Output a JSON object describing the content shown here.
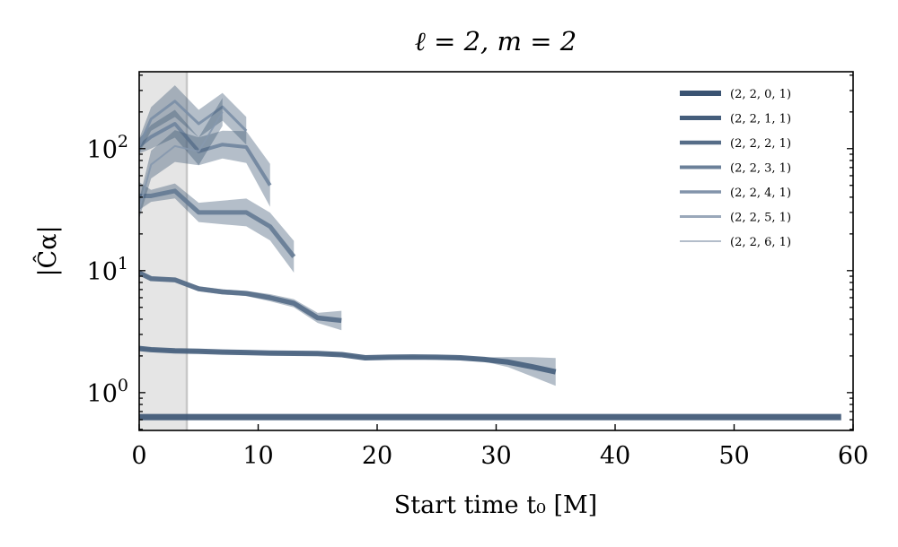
{
  "chart_data": {
    "type": "line",
    "title": "ℓ = 2, m = 2",
    "xlabel": "Start time t₀ [M]",
    "ylabel": "|Ĉα|",
    "xlim": [
      0,
      60
    ],
    "ylim": [
      0.49,
      427
    ],
    "yscale": "log",
    "xticks": [
      0,
      10,
      20,
      30,
      40,
      50,
      60
    ],
    "yticks": [
      {
        "value": 1,
        "base": "10",
        "exp": "0"
      },
      {
        "value": 10,
        "base": "10",
        "exp": "1"
      },
      {
        "value": 100,
        "base": "10",
        "exp": "2"
      }
    ],
    "shaded_region": {
      "x_from": 0,
      "x_to": 4,
      "color": "#e5e5e5"
    },
    "legend_position": "top-right",
    "series": [
      {
        "name": "(2, 2, 0, 1)",
        "color": "#3a5372",
        "x": [
          0,
          59
        ],
        "y": [
          0.63,
          0.63
        ],
        "err": [
          1.0,
          1.0
        ]
      },
      {
        "name": "(2, 2, 1, 1)",
        "color": "#455e7c",
        "x": [
          0,
          1,
          3,
          5,
          7,
          9,
          11,
          13,
          15,
          17,
          19,
          21,
          23,
          25,
          27,
          29,
          31,
          33,
          35
        ],
        "y": [
          2.3,
          2.25,
          2.2,
          2.18,
          2.15,
          2.13,
          2.11,
          2.1,
          2.09,
          2.05,
          1.93,
          1.95,
          1.96,
          1.95,
          1.93,
          1.87,
          1.78,
          1.63,
          1.48
        ],
        "err": [
          1.03,
          1.03,
          1.02,
          1.02,
          1.02,
          1.02,
          1.02,
          1.02,
          1.02,
          1.03,
          1.02,
          1.02,
          1.02,
          1.02,
          1.03,
          1.04,
          1.1,
          1.2,
          1.3
        ]
      },
      {
        "name": "(2, 2, 2, 1)",
        "color": "#546b87",
        "x": [
          0,
          1,
          3,
          5,
          7,
          9,
          11,
          13,
          15,
          17
        ],
        "y": [
          9.6,
          8.6,
          8.4,
          7.1,
          6.7,
          6.5,
          6.0,
          5.4,
          4.1,
          3.9
        ],
        "err": [
          1.04,
          1.04,
          1.04,
          1.05,
          1.05,
          1.05,
          1.07,
          1.08,
          1.1,
          1.2
        ]
      },
      {
        "name": "(2, 2, 3, 1)",
        "color": "#647a94",
        "x": [
          0,
          1,
          3,
          5,
          7,
          9,
          11,
          13
        ],
        "y": [
          41,
          41,
          45,
          30,
          30,
          30,
          23,
          13
        ],
        "err": [
          1.3,
          1.12,
          1.15,
          1.2,
          1.25,
          1.3,
          1.3,
          1.35
        ]
      },
      {
        "name": "(2, 2, 4, 1)",
        "color": "#6f849d",
        "x": [
          0,
          1,
          3,
          5,
          7,
          9,
          11
        ],
        "y": [
          105,
          125,
          160,
          95,
          108,
          103,
          50
        ],
        "err": [
          1.15,
          1.25,
          1.3,
          1.3,
          1.3,
          1.35,
          1.5
        ]
      },
      {
        "name": "(2, 2, 5, 1)",
        "color": "#7a8ea6",
        "x": [
          0,
          1,
          3,
          5,
          7,
          9
        ],
        "y": [
          105,
          175,
          245,
          160,
          220,
          140
        ],
        "err": [
          1.15,
          1.25,
          1.35,
          1.3,
          1.3,
          1.3
        ]
      },
      {
        "name": "(2, 2, 6, 1)",
        "color": "#8698ae",
        "x": [
          0,
          1,
          3,
          5,
          7
        ],
        "y": [
          32,
          74,
          105,
          95,
          200
        ],
        "err": [
          1.2,
          1.3,
          1.35,
          1.3,
          1.3
        ]
      }
    ],
    "legend_colors": [
      "#3a5372",
      "#455e7c",
      "#566d88",
      "#6b8099",
      "#8293aa",
      "#9aa8ba",
      "#b3bdca"
    ]
  }
}
